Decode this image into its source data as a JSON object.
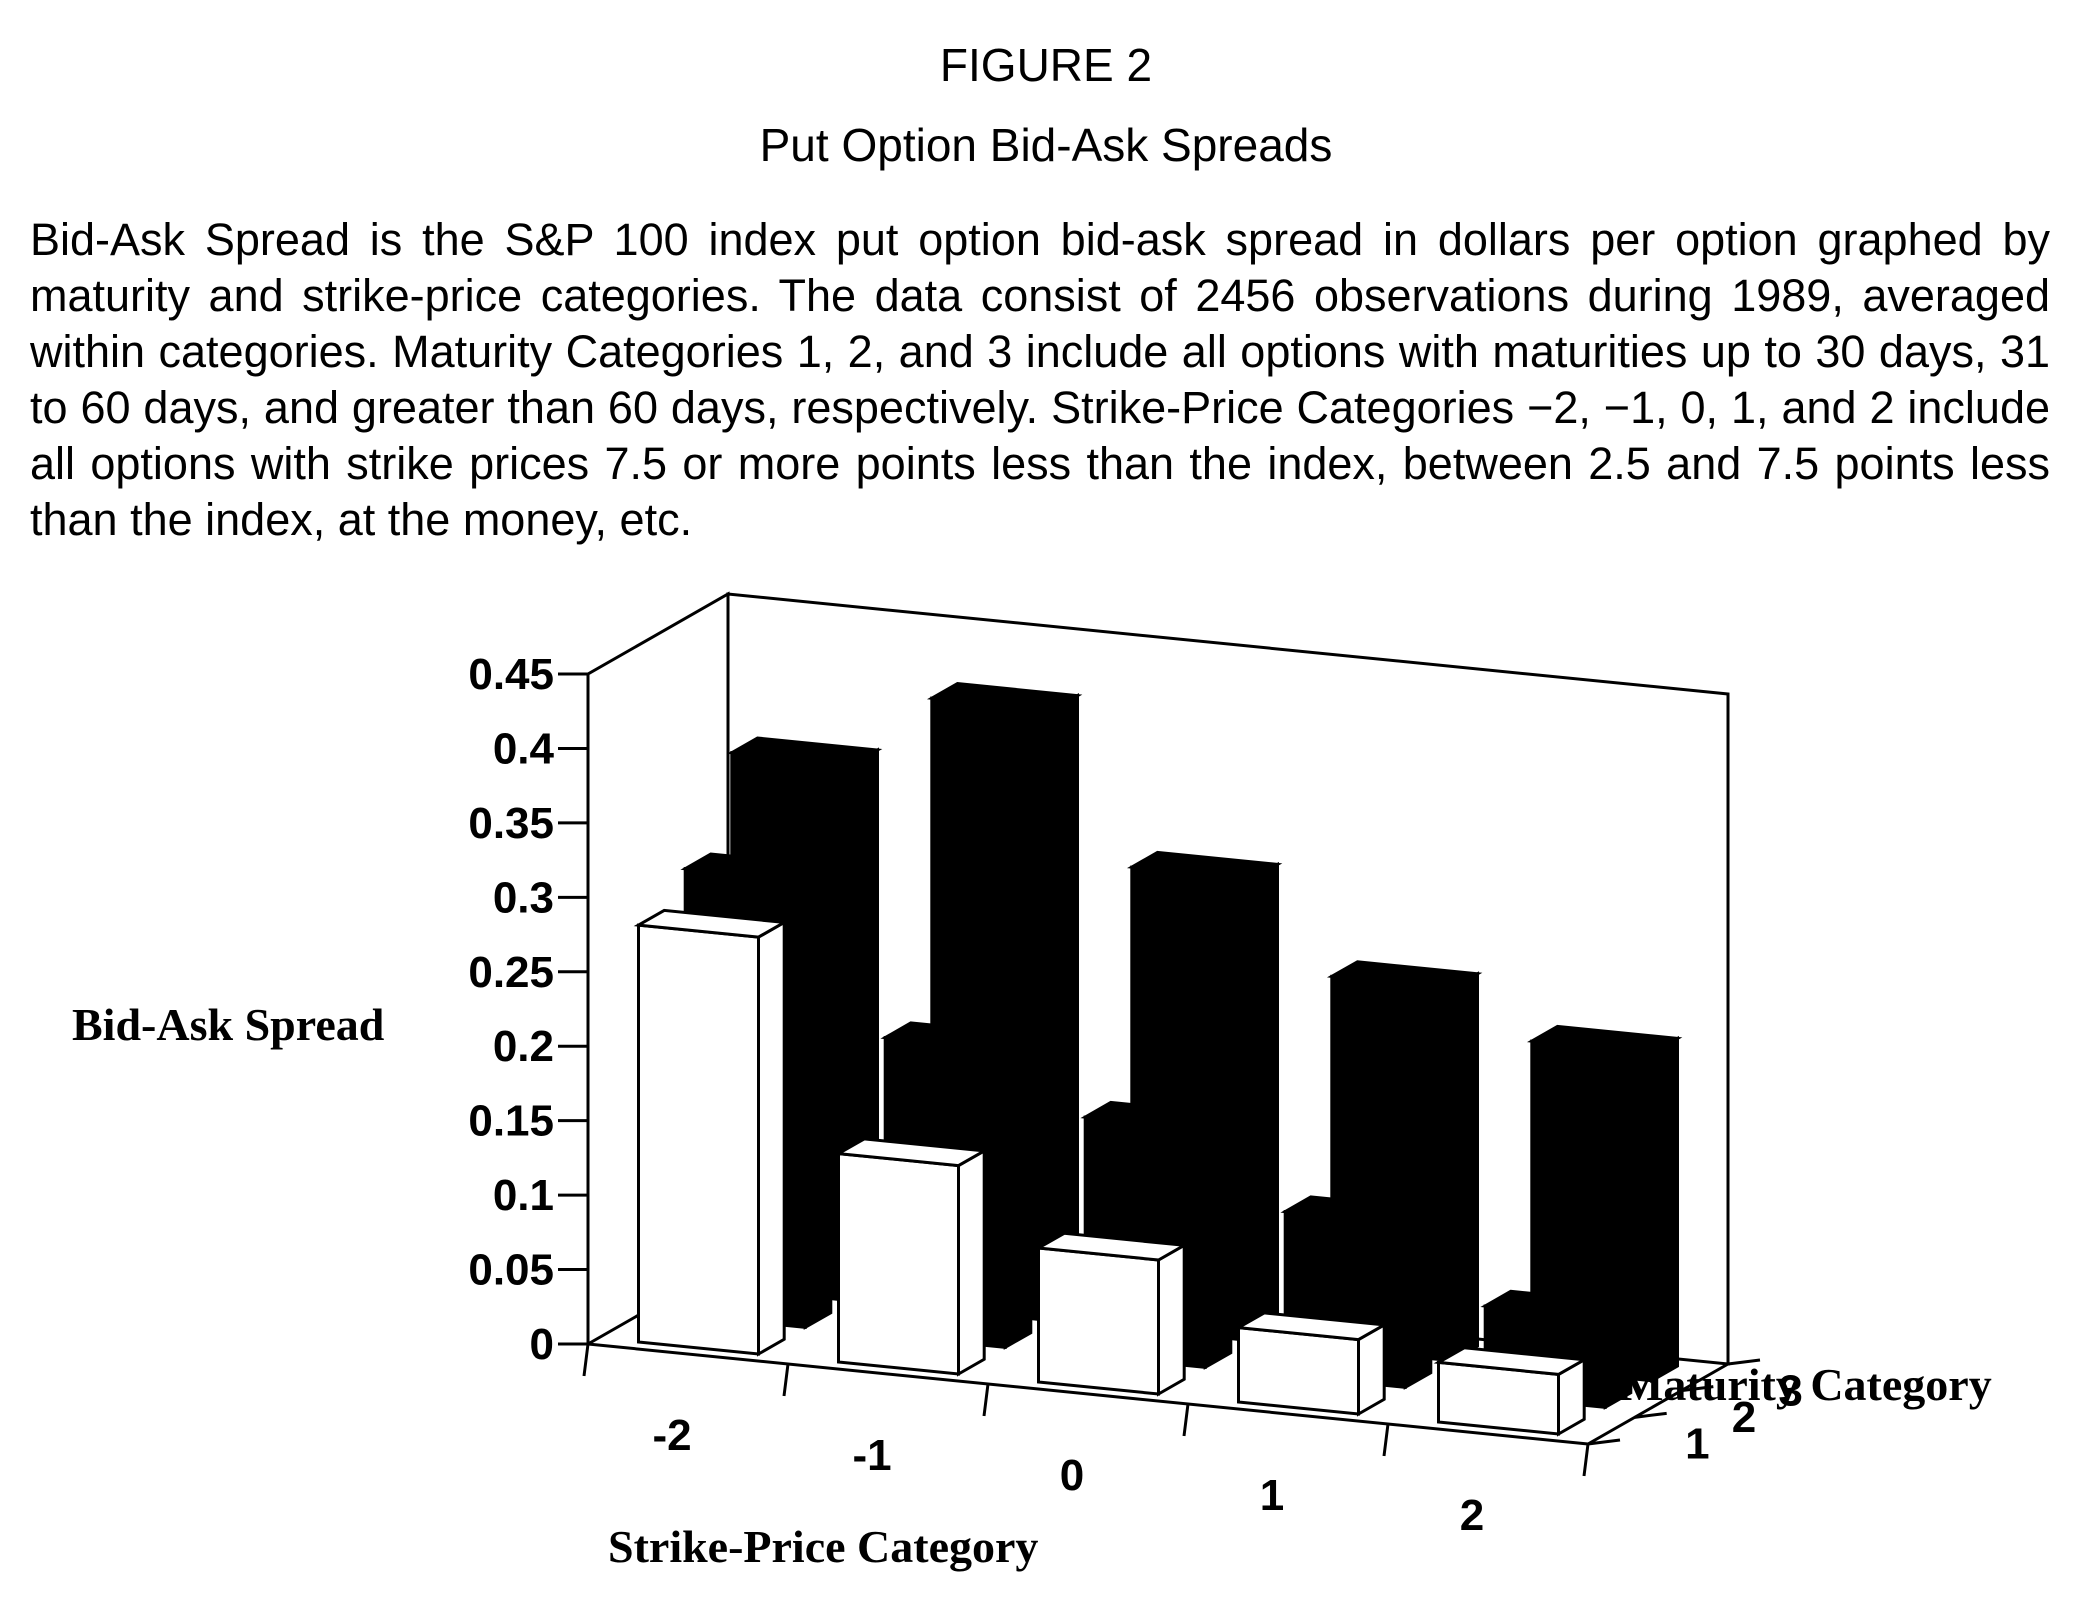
{
  "figure_label": "FIGURE 2",
  "figure_title": "Put Option Bid-Ask Spreads",
  "caption": "Bid-Ask Spread is the S&P 100 index put option bid-ask spread in dollars per option graphed by maturity and strike-price categories. The data consist of 2456 observations during 1989, averaged within categories. Maturity Categories 1, 2, and 3 include all options with maturities up to 30 days, 31 to 60 days, and greater than 60 days, respectively. Strike-Price Categories −2, −1, 0, 1, and 2 include all options with strike prices 7.5 or more points less than the index, between 2.5 and 7.5 points less than the index, at the money, etc.",
  "chart_data": {
    "type": "bar",
    "subtype": "3d-bar",
    "xlabel": "Strike-Price Category",
    "ylabel": "Maturity Category",
    "zlabel": "Bid-Ask Spread",
    "categories": [
      "-2",
      "-1",
      "0",
      "1",
      "2"
    ],
    "depth_categories": [
      "1",
      "2",
      "3"
    ],
    "zlim": [
      0,
      0.45
    ],
    "z_ticks": [
      "0",
      "0.05",
      "0.1",
      "0.15",
      "0.2",
      "0.25",
      "0.3",
      "0.35",
      "0.4",
      "0.45"
    ],
    "series": [
      {
        "maturity": "1",
        "values": [
          0.28,
          0.14,
          0.09,
          0.05,
          0.04
        ],
        "color": "#ffffff"
      },
      {
        "maturity": "2",
        "values": [
          0.3,
          0.2,
          0.16,
          0.11,
          0.06
        ],
        "color": "#000000"
      },
      {
        "maturity": "3",
        "values": [
          0.36,
          0.41,
          0.31,
          0.25,
          0.22
        ],
        "color": "#000000"
      }
    ],
    "grid": false,
    "legend": "none"
  }
}
